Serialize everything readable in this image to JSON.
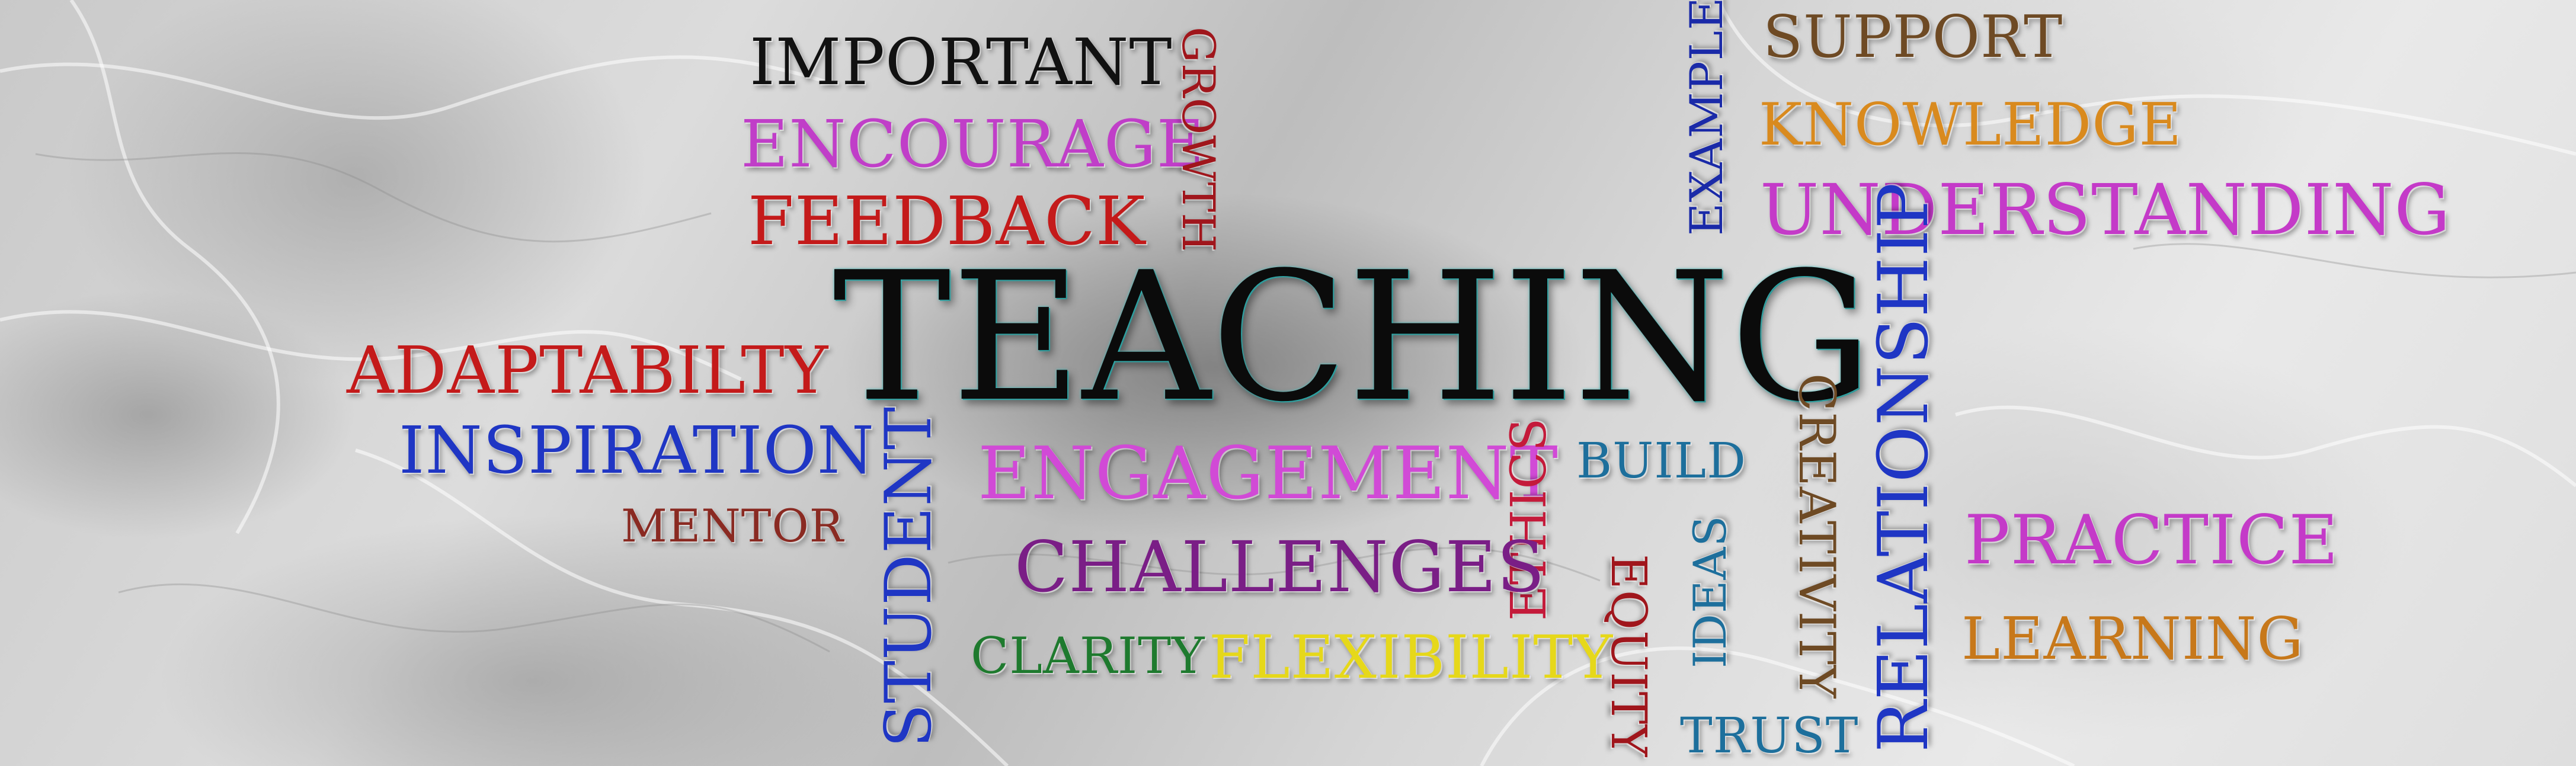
{
  "words": {
    "teaching": {
      "text": "TEACHING",
      "color": "#0b0b0b"
    },
    "important": {
      "text": "IMPORTANT",
      "color": "#111111"
    },
    "encourage": {
      "text": "ENCOURAGE",
      "color": "#c03ec8"
    },
    "feedback": {
      "text": "FEEDBACK",
      "color": "#c41a1a"
    },
    "growth": {
      "text": "GROWTH",
      "color": "#a0161c"
    },
    "example": {
      "text": "EXAMPLE",
      "color": "#1a2aa8"
    },
    "support": {
      "text": "SUPPORT",
      "color": "#6e4a24"
    },
    "knowledge": {
      "text": "KNOWLEDGE",
      "color": "#d98a1e"
    },
    "understanding": {
      "text": "UNDERSTANDING",
      "color": "#c43ac8"
    },
    "adaptabilty": {
      "text": "ADAPTABILTY",
      "color": "#c41a1a"
    },
    "inspiration": {
      "text": "INSPIRATION",
      "color": "#1f36c4"
    },
    "mentor": {
      "text": "MENTOR",
      "color": "#8a2a22"
    },
    "student": {
      "text": "STUDENT",
      "color": "#1f36c4"
    },
    "engagement": {
      "text": "ENGAGEMENT",
      "color": "#d14ad6"
    },
    "ethics": {
      "text": "ETHICS",
      "color": "#c41a3a"
    },
    "build": {
      "text": "BUILD",
      "color": "#1d6f9c"
    },
    "ideas": {
      "text": "IDEAS",
      "color": "#1d6f9c"
    },
    "creativity": {
      "text": "CREATIVITY",
      "color": "#6e4a24"
    },
    "relationship": {
      "text": "RELATIONSHIP",
      "color": "#1f36c4"
    },
    "practice": {
      "text": "PRACTICE",
      "color": "#c43ac8"
    },
    "learning": {
      "text": "LEARNING",
      "color": "#c7781a"
    },
    "challenges": {
      "text": "CHALLENGES",
      "color": "#7a1e86"
    },
    "clarity": {
      "text": "CLARITY",
      "color": "#1e7a2e"
    },
    "flexibility": {
      "text": "FLEXIBILITY",
      "color": "#e6d81a"
    },
    "equity": {
      "text": "EQUITY",
      "color": "#a0161c"
    },
    "trust": {
      "text": "TRUST",
      "color": "#1d6f9c"
    }
  }
}
